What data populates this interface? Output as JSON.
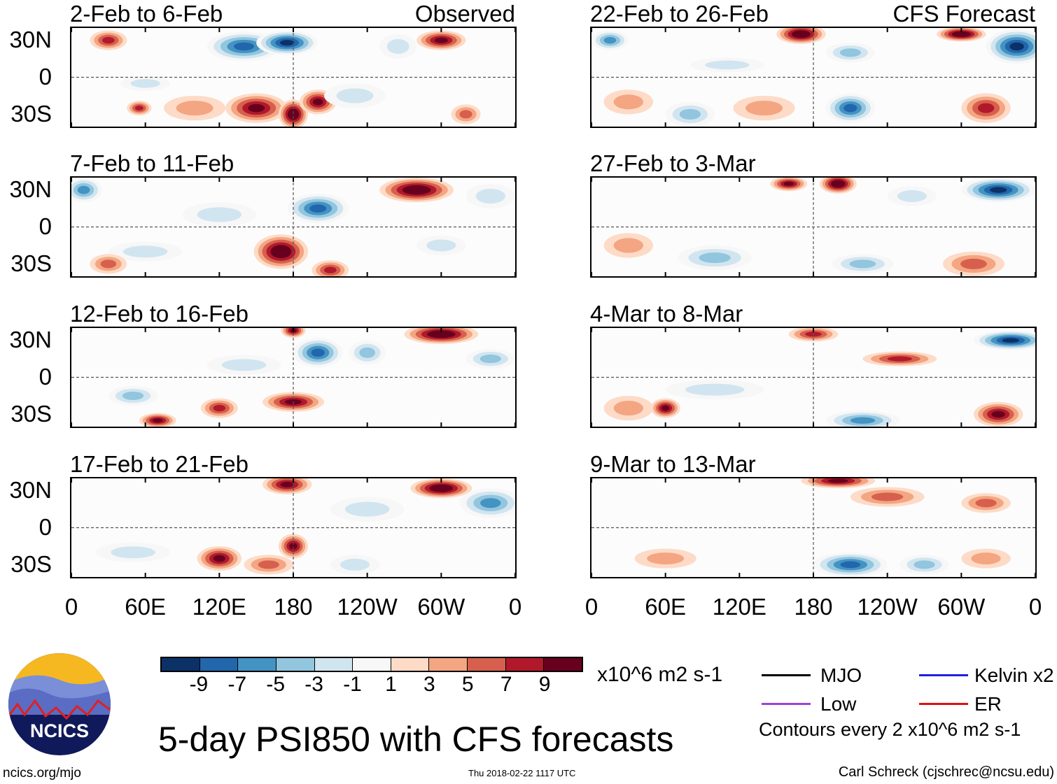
{
  "columns": {
    "left_label": "Observed",
    "right_label": "CFS Forecast"
  },
  "panels": [
    {
      "title": "2-Feb to 6-Feb",
      "anoms": [
        [
          30,
          30,
          6,
          15,
          8
        ],
        [
          140,
          25,
          -9,
          30,
          12
        ],
        [
          175,
          28,
          -11,
          25,
          10
        ],
        [
          100,
          -25,
          3,
          25,
          10
        ],
        [
          55,
          -25,
          7,
          10,
          6
        ],
        [
          150,
          -25,
          9,
          25,
          12
        ],
        [
          180,
          -30,
          11,
          12,
          12
        ],
        [
          200,
          -20,
          9,
          15,
          10
        ],
        [
          230,
          -15,
          -3,
          25,
          10
        ],
        [
          265,
          25,
          -3,
          15,
          10
        ],
        [
          300,
          30,
          9,
          20,
          8
        ],
        [
          320,
          -30,
          5,
          12,
          8
        ],
        [
          60,
          -5,
          -3,
          20,
          6
        ]
      ]
    },
    {
      "title": "7-Feb to 11-Feb",
      "anoms": [
        [
          10,
          30,
          -7,
          15,
          10
        ],
        [
          120,
          10,
          -3,
          30,
          10
        ],
        [
          200,
          15,
          -9,
          25,
          12
        ],
        [
          280,
          30,
          11,
          30,
          10
        ],
        [
          170,
          -20,
          11,
          22,
          14
        ],
        [
          210,
          -35,
          7,
          15,
          8
        ],
        [
          60,
          -20,
          -3,
          30,
          8
        ],
        [
          30,
          -30,
          5,
          15,
          8
        ],
        [
          340,
          25,
          -3,
          20,
          10
        ],
        [
          300,
          -15,
          -3,
          20,
          8
        ]
      ]
    },
    {
      "title": "12-Feb to 16-Feb",
      "anoms": [
        [
          180,
          38,
          9,
          10,
          6
        ],
        [
          200,
          20,
          -9,
          20,
          12
        ],
        [
          240,
          20,
          -5,
          15,
          10
        ],
        [
          300,
          35,
          11,
          30,
          8
        ],
        [
          340,
          15,
          -5,
          20,
          8
        ],
        [
          180,
          -20,
          9,
          25,
          8
        ],
        [
          120,
          -25,
          7,
          15,
          8
        ],
        [
          70,
          -35,
          9,
          15,
          6
        ],
        [
          50,
          -15,
          -5,
          20,
          8
        ],
        [
          140,
          10,
          -3,
          30,
          8
        ]
      ]
    },
    {
      "title": "17-Feb to 21-Feb",
      "anoms": [
        [
          175,
          35,
          9,
          20,
          8
        ],
        [
          300,
          32,
          11,
          25,
          8
        ],
        [
          340,
          20,
          -7,
          25,
          12
        ],
        [
          240,
          15,
          -3,
          30,
          10
        ],
        [
          120,
          -25,
          9,
          18,
          10
        ],
        [
          180,
          -15,
          9,
          12,
          10
        ],
        [
          160,
          -30,
          5,
          20,
          8
        ],
        [
          230,
          -30,
          -3,
          20,
          8
        ],
        [
          50,
          -20,
          -3,
          30,
          8
        ]
      ]
    },
    {
      "title": "22-Feb to 26-Feb",
      "anoms": [
        [
          15,
          30,
          -7,
          15,
          8
        ],
        [
          170,
          35,
          11,
          20,
          8
        ],
        [
          300,
          35,
          11,
          20,
          6
        ],
        [
          345,
          25,
          -11,
          25,
          14
        ],
        [
          210,
          20,
          -5,
          20,
          8
        ],
        [
          210,
          -25,
          -9,
          20,
          12
        ],
        [
          80,
          -30,
          -5,
          20,
          10
        ],
        [
          140,
          -25,
          3,
          25,
          10
        ],
        [
          30,
          -20,
          3,
          20,
          10
        ],
        [
          320,
          -25,
          7,
          20,
          12
        ],
        [
          110,
          10,
          -3,
          30,
          6
        ]
      ]
    },
    {
      "title": "27-Feb to 3-Mar",
      "anoms": [
        [
          160,
          35,
          9,
          15,
          6
        ],
        [
          200,
          35,
          11,
          15,
          8
        ],
        [
          330,
          30,
          -11,
          30,
          10
        ],
        [
          100,
          -25,
          -5,
          30,
          10
        ],
        [
          220,
          -30,
          -5,
          25,
          8
        ],
        [
          310,
          -30,
          5,
          25,
          10
        ],
        [
          30,
          -15,
          3,
          20,
          10
        ],
        [
          260,
          25,
          -3,
          20,
          8
        ]
      ]
    },
    {
      "title": "4-Mar to 8-Mar",
      "anoms": [
        [
          340,
          30,
          -11,
          30,
          8
        ],
        [
          250,
          15,
          7,
          30,
          6
        ],
        [
          180,
          35,
          7,
          20,
          6
        ],
        [
          60,
          -25,
          9,
          12,
          8
        ],
        [
          30,
          -25,
          3,
          20,
          10
        ],
        [
          220,
          -35,
          -7,
          30,
          8
        ],
        [
          330,
          -30,
          9,
          20,
          10
        ],
        [
          100,
          -10,
          -3,
          40,
          8
        ]
      ]
    },
    {
      "title": "9-Mar to 13-Mar",
      "anoms": [
        [
          200,
          38,
          9,
          30,
          6
        ],
        [
          240,
          25,
          5,
          30,
          8
        ],
        [
          210,
          -30,
          -9,
          30,
          10
        ],
        [
          270,
          -30,
          -5,
          20,
          8
        ],
        [
          60,
          -25,
          3,
          25,
          8
        ],
        [
          320,
          -25,
          3,
          20,
          8
        ],
        [
          320,
          20,
          5,
          20,
          8
        ]
      ]
    }
  ],
  "lat_labels": [
    "30N",
    "0",
    "30S"
  ],
  "lon_labels": [
    "0",
    "60E",
    "120E",
    "180",
    "120W",
    "60W",
    "0"
  ],
  "colorbar": {
    "colors": [
      "#0b3167",
      "#2266ac",
      "#4393c3",
      "#92c5de",
      "#d1e5f0",
      "#f7f7f7",
      "#fddbc7",
      "#f4a582",
      "#d6604d",
      "#b2182b",
      "#67001f"
    ],
    "labels": [
      "-9",
      "-7",
      "-5",
      "-3",
      "-1",
      "1",
      "3",
      "5",
      "7",
      "9"
    ],
    "units": "x10^6 m2 s-1"
  },
  "legend": {
    "items": [
      {
        "label": "MJO",
        "color": "#000000"
      },
      {
        "label": "Kelvin x2",
        "color": "#1f1fe0"
      },
      {
        "label": "Low",
        "color": "#a040e0"
      },
      {
        "label": "ER",
        "color": "#e01010"
      }
    ],
    "note": "Contours every 2 x10^6 m2 s-1"
  },
  "title": "5-day PSI850 with CFS forecasts",
  "logo": {
    "text": "NCICS"
  },
  "footer": {
    "url": "ncics.org/mjo",
    "timestamp": "Thu 2018-02-22 1117 UTC",
    "author": "Carl Schreck (cjschrec@ncsu.edu)"
  }
}
